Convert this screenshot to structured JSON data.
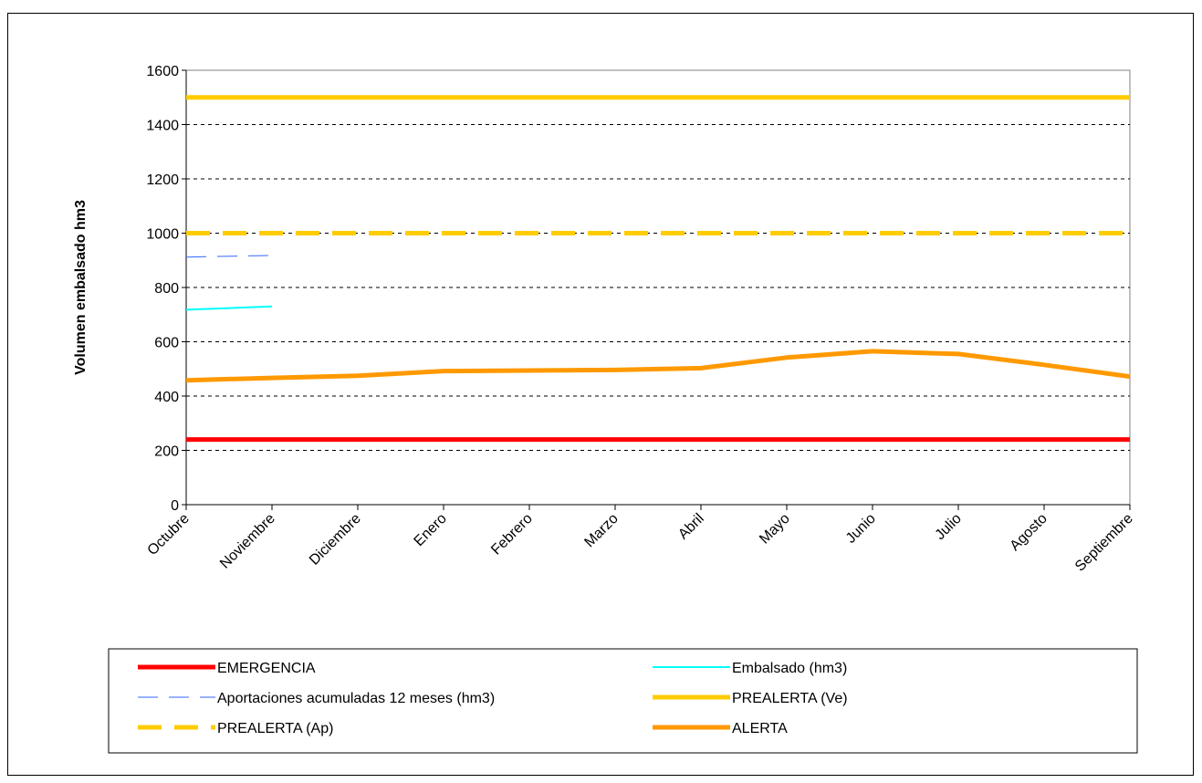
{
  "chart_data": {
    "type": "line",
    "ylabel": "Volumen embalsado hm3",
    "xlabel": "",
    "title": "",
    "ylim": [
      0,
      1600
    ],
    "yticks": [
      0,
      200,
      400,
      600,
      800,
      1000,
      1200,
      1400,
      1600
    ],
    "grid": "horizontal-dashed",
    "legend_position": "bottom",
    "categories": [
      "Octubre",
      "Noviembre",
      "Diciembre",
      "Enero",
      "Febrero",
      "Marzo",
      "Abril",
      "Mayo",
      "Junio",
      "Julio",
      "Agosto",
      "Septiembre"
    ],
    "series": [
      {
        "name": "EMERGENCIA",
        "color": "#ff0000",
        "style": "solid-thick",
        "values": [
          240,
          240,
          240,
          240,
          240,
          240,
          240,
          240,
          240,
          240,
          240,
          240
        ]
      },
      {
        "name": "Embalsado (hm3)",
        "color": "#00ffff",
        "style": "solid-thin",
        "values": [
          718,
          730,
          null,
          null,
          null,
          null,
          null,
          null,
          null,
          null,
          null,
          null
        ]
      },
      {
        "name": "Aportaciones acumuladas 12 meses (hm3)",
        "color": "#3366ff",
        "style": "dashed-thin",
        "values": [
          912,
          918,
          null,
          null,
          null,
          null,
          null,
          null,
          null,
          null,
          null,
          null
        ]
      },
      {
        "name": "PREALERTA (Ve)",
        "color": "#ffcc00",
        "style": "solid-thick",
        "values": [
          1500,
          1500,
          1500,
          1500,
          1500,
          1500,
          1500,
          1500,
          1500,
          1500,
          1500,
          1500
        ]
      },
      {
        "name": "PREALERTA (Ap)",
        "color": "#ffcc00",
        "style": "dashed-thick",
        "values": [
          1000,
          1000,
          1000,
          1000,
          1000,
          1000,
          1000,
          1000,
          1000,
          1000,
          1000,
          1000
        ]
      },
      {
        "name": "ALERTA",
        "color": "#ff9900",
        "style": "solid-thick",
        "values": [
          458,
          467,
          475,
          492,
          494,
          496,
          503,
          542,
          565,
          555,
          515,
          472
        ]
      }
    ]
  }
}
